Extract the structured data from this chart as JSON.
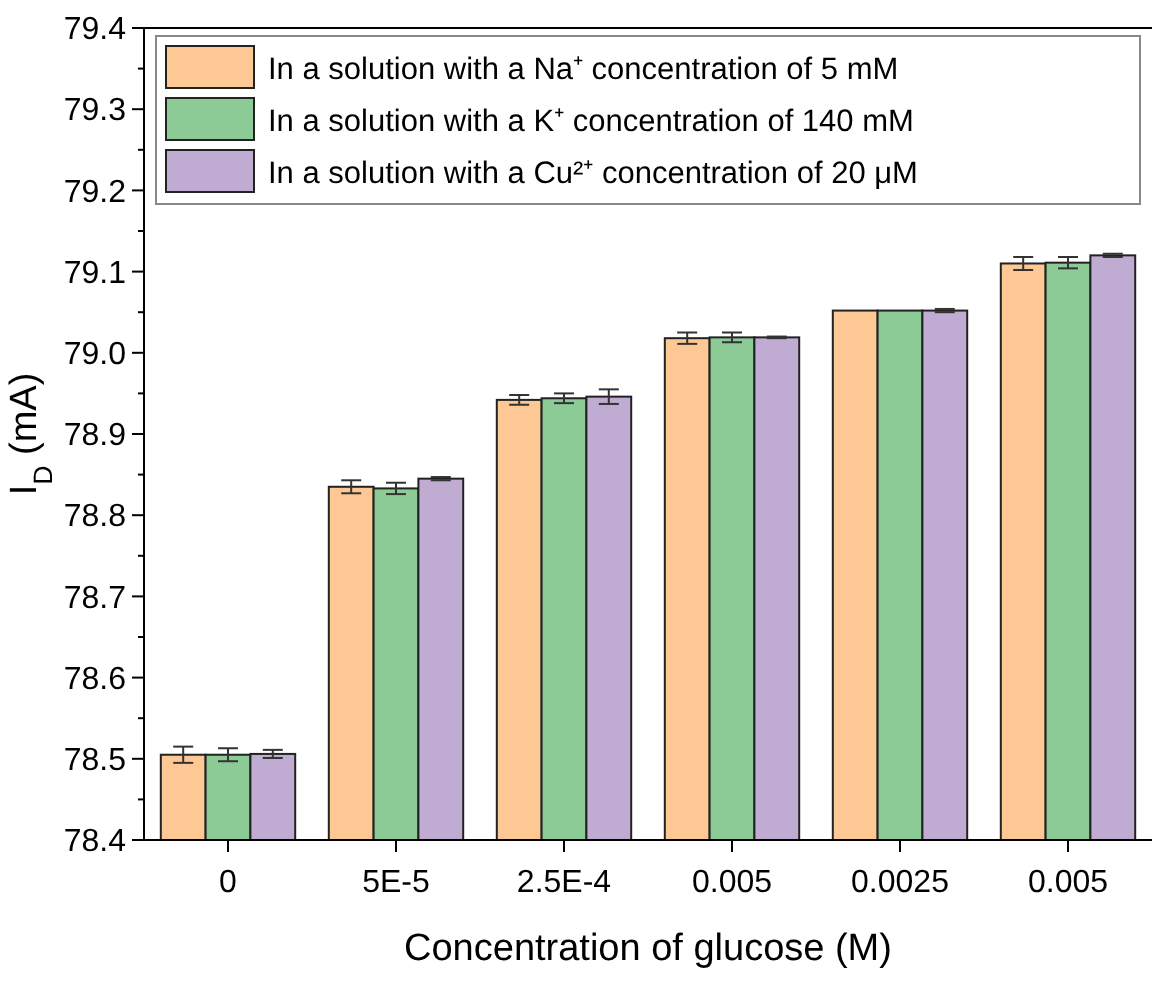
{
  "chart_data": {
    "type": "bar",
    "xlabel": "Concentration of glucose (M)",
    "ylabel": "I$_{D}$ (mA)",
    "categories": [
      "0",
      "5E-5",
      "2.5E-4",
      "0.005",
      "0.0025",
      "0.005"
    ],
    "series": [
      {
        "name": "In a solution with a Na⁺ concentration of 5 mM",
        "color": "#fdc893",
        "values": [
          78.505,
          78.835,
          78.942,
          79.018,
          79.052,
          79.11
        ],
        "errors": [
          0.01,
          0.008,
          0.006,
          0.007,
          null,
          0.008
        ]
      },
      {
        "name": "In a solution with a K⁺ concentration of 140 mM",
        "color": "#8dcb96",
        "values": [
          78.505,
          78.833,
          78.944,
          79.019,
          79.052,
          79.111
        ],
        "errors": [
          0.008,
          0.007,
          0.006,
          0.006,
          null,
          0.007
        ]
      },
      {
        "name": "In a solution with a Cu²⁺ concentration of 20 μM",
        "color": "#c0abd2",
        "values": [
          78.506,
          78.845,
          78.946,
          79.019,
          79.052,
          79.12
        ],
        "errors": [
          0.005,
          0.002,
          0.009,
          0.001,
          0.002,
          0.002
        ]
      }
    ],
    "ylim": [
      78.4,
      79.4
    ],
    "yticks": [
      78.4,
      {
        "value": 78.45,
        "label": null
      },
      78.5,
      {
        "value": 78.55,
        "label": null
      },
      78.6,
      {
        "value": 78.65,
        "label": null
      },
      78.7,
      {
        "value": 78.75,
        "label": null
      },
      78.8,
      {
        "value": 78.85,
        "label": null
      },
      78.9,
      {
        "value": 78.95,
        "label": null
      },
      {
        "value": 79.0,
        "label": "79.0"
      },
      {
        "value": 79.05,
        "label": null
      },
      79.1,
      {
        "value": 79.15,
        "label": null
      },
      79.2,
      {
        "value": 79.25,
        "label": null
      },
      79.3,
      {
        "value": 79.35,
        "label": null
      },
      79.4
    ],
    "legend": "top",
    "grid": false
  }
}
